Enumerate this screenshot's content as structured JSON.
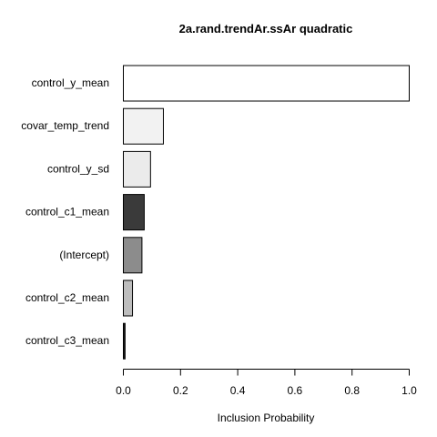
{
  "chart_data": {
    "type": "bar",
    "orientation": "horizontal",
    "title": "2a.rand.trendAr.ssAr quadratic",
    "xlabel": "Inclusion Probability",
    "ylabel": "",
    "xlim": [
      0,
      1
    ],
    "x_ticks": [
      "0.0",
      "0.2",
      "0.4",
      "0.6",
      "0.8",
      "1.0"
    ],
    "grid": false,
    "legend": "none",
    "categories": [
      "control_y_mean",
      "covar_temp_trend",
      "control_y_sd",
      "control_c1_mean",
      "(Intercept)",
      "control_c2_mean",
      "control_c3_mean"
    ],
    "values": [
      1.0,
      0.14,
      0.095,
      0.073,
      0.065,
      0.032,
      0.006
    ],
    "colors": [
      "#ffffff",
      "#f2f2f2",
      "#ebebeb",
      "#3a3a3a",
      "#8c8c8c",
      "#bdbdbd",
      "#1a1a1a"
    ]
  }
}
